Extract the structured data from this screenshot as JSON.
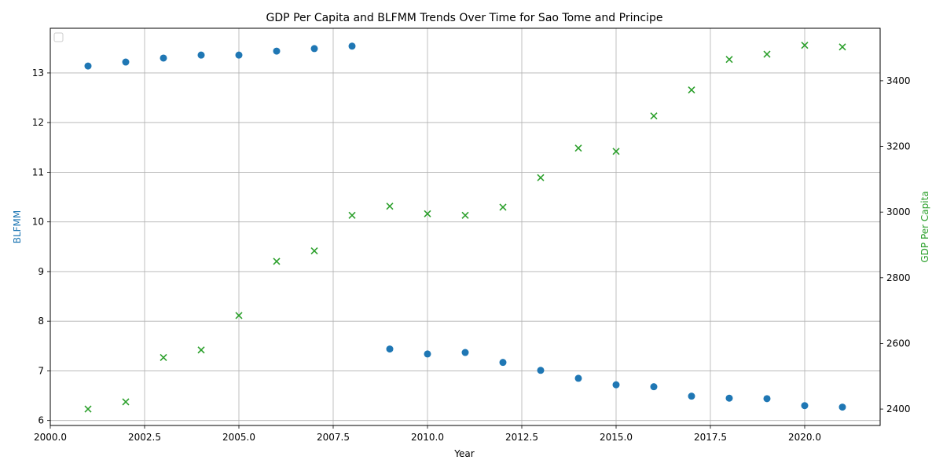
{
  "chart_data": {
    "type": "scatter",
    "title": "GDP Per Capita and BLFMM Trends Over Time for Sao Tome and Principe",
    "xlabel": "Year",
    "ylabel_left": "BLFMM",
    "ylabel_right": "GDP Per Capita",
    "xlim": [
      2000,
      2022
    ],
    "ylim_left": [
      5.9,
      13.9
    ],
    "ylim_right": [
      2350,
      3560
    ],
    "x_ticks": [
      2000,
      2002.5,
      2005,
      2007.5,
      2010,
      2012.5,
      2015,
      2017.5,
      2020
    ],
    "x_tick_labels": [
      "2000.0",
      "2002.5",
      "2005.0",
      "2007.5",
      "2010.0",
      "2012.5",
      "2015.0",
      "2017.5",
      "2020.0"
    ],
    "y_left_ticks": [
      6,
      7,
      8,
      9,
      10,
      11,
      12,
      13
    ],
    "y_right_ticks": [
      2400,
      2600,
      2800,
      3000,
      3200,
      3400
    ],
    "grid": true,
    "legend": "top-left (empty)",
    "series": [
      {
        "name": "BLFMM",
        "axis": "left",
        "marker": "circle",
        "color": "#1f77b4",
        "x": [
          2001,
          2002,
          2003,
          2004,
          2005,
          2006,
          2007,
          2008,
          2009,
          2010,
          2011,
          2012,
          2013,
          2014,
          2015,
          2016,
          2017,
          2018,
          2019,
          2020,
          2021
        ],
        "y": [
          13.14,
          13.22,
          13.3,
          13.36,
          13.36,
          13.44,
          13.49,
          13.54,
          7.44,
          7.34,
          7.37,
          7.17,
          7.01,
          6.85,
          6.72,
          6.68,
          6.49,
          6.45,
          6.44,
          6.3,
          6.27
        ]
      },
      {
        "name": "GDP Per Capita",
        "axis": "right",
        "marker": "x",
        "color": "#2ca02c",
        "x": [
          2001,
          2002,
          2003,
          2004,
          2005,
          2006,
          2007,
          2008,
          2009,
          2010,
          2011,
          2012,
          2013,
          2014,
          2015,
          2016,
          2017,
          2018,
          2019,
          2020,
          2021
        ],
        "y": [
          2400,
          2422,
          2557,
          2580,
          2685,
          2850,
          2882,
          2990,
          3018,
          2995,
          2990,
          3015,
          3105,
          3195,
          3185,
          3293,
          3372,
          3465,
          3481,
          3508,
          3503
        ]
      }
    ]
  }
}
